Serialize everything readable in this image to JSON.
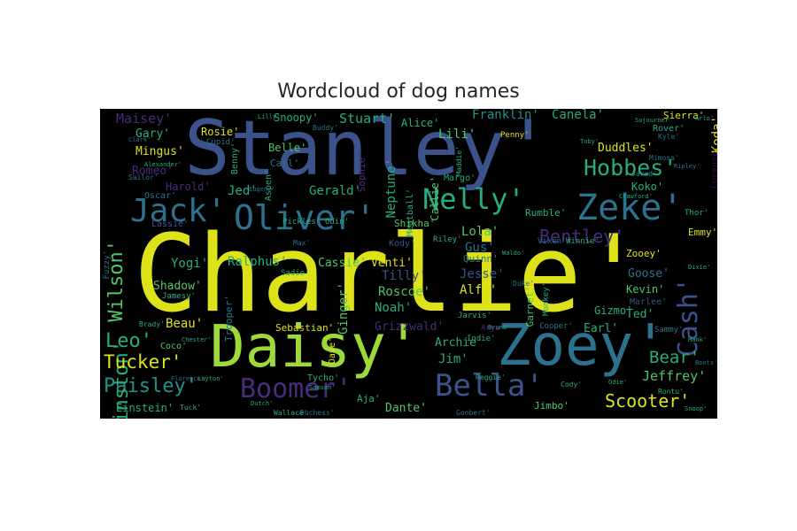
{
  "title": "Wordcloud of dog names",
  "palette": {
    "yellow": "#dde318",
    "lime": "#9ed93a",
    "green": "#52c569",
    "teal": "#27ad81",
    "cyan": "#20928c",
    "steel": "#2c728e",
    "blue": "#3b528b",
    "indigo": "#472d7b",
    "purple": "#440154"
  },
  "words": [
    {
      "text": "Charlie'"
    },
    {
      "text": "Stanley'"
    },
    {
      "text": "Daisy'"
    },
    {
      "text": "Zoey'"
    },
    {
      "text": "Oliver'"
    },
    {
      "text": "Jack'"
    },
    {
      "text": "Zeke'"
    },
    {
      "text": "Nelly'"
    },
    {
      "text": "Bella'"
    },
    {
      "text": "Boomer'"
    },
    {
      "text": "Cash'"
    },
    {
      "text": "Hobbes'"
    },
    {
      "text": "Paisley'"
    },
    {
      "text": "Winston'"
    },
    {
      "text": "Wilson'"
    },
    {
      "text": "Leo'"
    },
    {
      "text": "Tucker'"
    },
    {
      "text": "Bentley'"
    },
    {
      "text": "Scooter'"
    },
    {
      "text": "Bear'"
    },
    {
      "text": "Jeffrey'"
    },
    {
      "text": "Maisey'"
    },
    {
      "text": "Gary'"
    },
    {
      "text": "Mingus'"
    },
    {
      "text": "Romeo'"
    },
    {
      "text": "Stuart'"
    },
    {
      "text": "Snoopy'"
    },
    {
      "text": "Franklin'"
    },
    {
      "text": "Canela'"
    },
    {
      "text": "Sierra'"
    },
    {
      "text": "Rover'"
    },
    {
      "text": "Kyle'"
    },
    {
      "text": "Duddles'"
    },
    {
      "text": "Koda'"
    },
    {
      "text": "Koko'"
    },
    {
      "text": "Jarod'"
    },
    {
      "text": "Lorenzo'"
    },
    {
      "text": "Thor'"
    },
    {
      "text": "Emmy'"
    },
    {
      "text": "Zooey'"
    },
    {
      "text": "Goose'"
    },
    {
      "text": "Kevin'"
    },
    {
      "text": "Marlee'"
    },
    {
      "text": "Ted'"
    },
    {
      "text": "Sammy'"
    },
    {
      "text": "Hank'"
    },
    {
      "text": "Rontu'"
    },
    {
      "text": "Snoop'"
    },
    {
      "text": "Ralphus'"
    },
    {
      "text": "Cassie'"
    },
    {
      "text": "Venti'"
    },
    {
      "text": "Kody'"
    },
    {
      "text": "Lola'"
    },
    {
      "text": "Gus'"
    },
    {
      "text": "Tilly'"
    },
    {
      "text": "Jesse'"
    },
    {
      "text": "Alfy'"
    },
    {
      "text": "Roscoe'"
    },
    {
      "text": "Noah'"
    },
    {
      "text": "Ginger'"
    },
    {
      "text": "Grizzwald'"
    },
    {
      "text": "Archie'"
    },
    {
      "text": "Jim'"
    },
    {
      "text": "Earl'"
    },
    {
      "text": "Cooper'"
    },
    {
      "text": "Indie'"
    },
    {
      "text": "Dante'"
    },
    {
      "text": "Jimbo'"
    },
    {
      "text": "Aja'"
    },
    {
      "text": "Cody'"
    },
    {
      "text": "Shadow'"
    },
    {
      "text": "Yogi'"
    },
    {
      "text": "Beau'"
    },
    {
      "text": "Sebastian'"
    },
    {
      "text": "Dave'"
    },
    {
      "text": "Gerald'"
    },
    {
      "text": "Jed'"
    },
    {
      "text": "Carl'"
    },
    {
      "text": "Belle'"
    },
    {
      "text": "Rosie'"
    },
    {
      "text": "Harold'"
    },
    {
      "text": "Oscar'"
    },
    {
      "text": "Sailor'"
    },
    {
      "text": "Lassie'"
    },
    {
      "text": "Alice'"
    },
    {
      "text": "Lili'"
    },
    {
      "text": "Callie'"
    },
    {
      "text": "Meatball'"
    },
    {
      "text": "Neptune'"
    },
    {
      "text": "Sophie'"
    },
    {
      "text": "Shikha'"
    },
    {
      "text": "Rumble'"
    },
    {
      "text": "Quinn'"
    },
    {
      "text": "Riley'"
    },
    {
      "text": "Gizmo'"
    },
    {
      "text": "Penny'"
    },
    {
      "text": "Benny'"
    },
    {
      "text": "Trooper'"
    },
    {
      "text": "Coco'"
    },
    {
      "text": "Einstein'"
    },
    {
      "text": "Jamesy'"
    },
    {
      "text": "Brady'"
    },
    {
      "text": "Pickles'"
    },
    {
      "text": "Odin'"
    },
    {
      "text": "Aspen'"
    },
    {
      "text": "Max'"
    },
    {
      "text": "Sadie'"
    },
    {
      "text": "Monkey'"
    },
    {
      "text": "Garnet'"
    },
    {
      "text": "Vixen'"
    },
    {
      "text": "Winnie'"
    },
    {
      "text": "Buddy'"
    },
    {
      "text": "Cupid'"
    },
    {
      "text": "Eugene'"
    },
    {
      "text": "Margo'"
    },
    {
      "text": "Tycho'"
    },
    {
      "text": "Jarvis'"
    },
    {
      "text": "Reggie'"
    },
    {
      "text": "Tuck'"
    },
    {
      "text": "Duchess'"
    },
    {
      "text": "Goobert'"
    },
    {
      "text": "Wallace'"
    },
    {
      "text": "Florence'"
    },
    {
      "text": "Layton'"
    },
    {
      "text": "Dutch'"
    },
    {
      "text": "Samson'"
    },
    {
      "text": "Mimosa'"
    },
    {
      "text": "Chester'"
    },
    {
      "text": "Sojourner'"
    },
    {
      "text": "Lilly'"
    },
    {
      "text": "Ripley'"
    },
    {
      "text": "Crawford'"
    },
    {
      "text": "Fuzzy'"
    },
    {
      "text": "Odie'"
    },
    {
      "text": "Boots'"
    },
    {
      "text": "Toby'"
    },
    {
      "text": "Dixie'"
    },
    {
      "text": "Arlo'"
    },
    {
      "text": "Bruno'"
    },
    {
      "text": "Maddie'"
    },
    {
      "text": "Arya'"
    },
    {
      "text": "Clark'"
    },
    {
      "text": "Alexander'"
    },
    {
      "text": "Waldo'"
    },
    {
      "text": "Duke'"
    }
  ]
}
